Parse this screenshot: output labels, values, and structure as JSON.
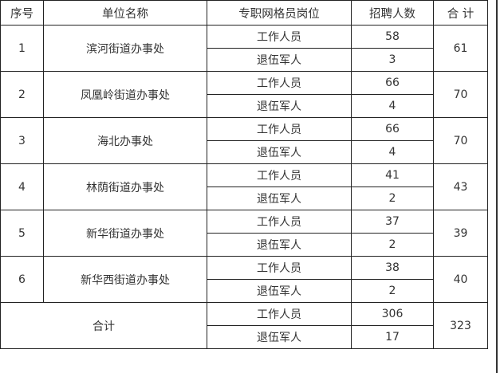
{
  "headers": {
    "no": "序号",
    "unit": "单位名称",
    "post": "专职网格员岗位",
    "count": "招聘人数",
    "total": "合 计"
  },
  "rows": [
    {
      "no": "1",
      "unit": "滨河街道办事处",
      "staff_label": "工作人员",
      "staff": "58",
      "vet_label": "退伍军人",
      "vet": "3",
      "total": "61"
    },
    {
      "no": "2",
      "unit": "凤凰岭街道办事处",
      "staff_label": "工作人员",
      "staff": "66",
      "vet_label": "退伍军人",
      "vet": "4",
      "total": "70"
    },
    {
      "no": "3",
      "unit": "海北办事处",
      "staff_label": "工作人员",
      "staff": "66",
      "vet_label": "退伍军人",
      "vet": "4",
      "total": "70"
    },
    {
      "no": "4",
      "unit": "林荫街道办事处",
      "staff_label": "工作人员",
      "staff": "41",
      "vet_label": "退伍军人",
      "vet": "2",
      "total": "43"
    },
    {
      "no": "5",
      "unit": "新华街道办事处",
      "staff_label": "工作人员",
      "staff": "37",
      "vet_label": "退伍军人",
      "vet": "2",
      "total": "39"
    },
    {
      "no": "6",
      "unit": "新华西街道办事处",
      "staff_label": "工作人员",
      "staff": "38",
      "vet_label": "退伍军人",
      "vet": "2",
      "total": "40"
    }
  ],
  "summary": {
    "label": "合计",
    "staff_label": "工作人员",
    "staff": "306",
    "vet_label": "退伍军人",
    "vet": "17",
    "total": "323"
  }
}
